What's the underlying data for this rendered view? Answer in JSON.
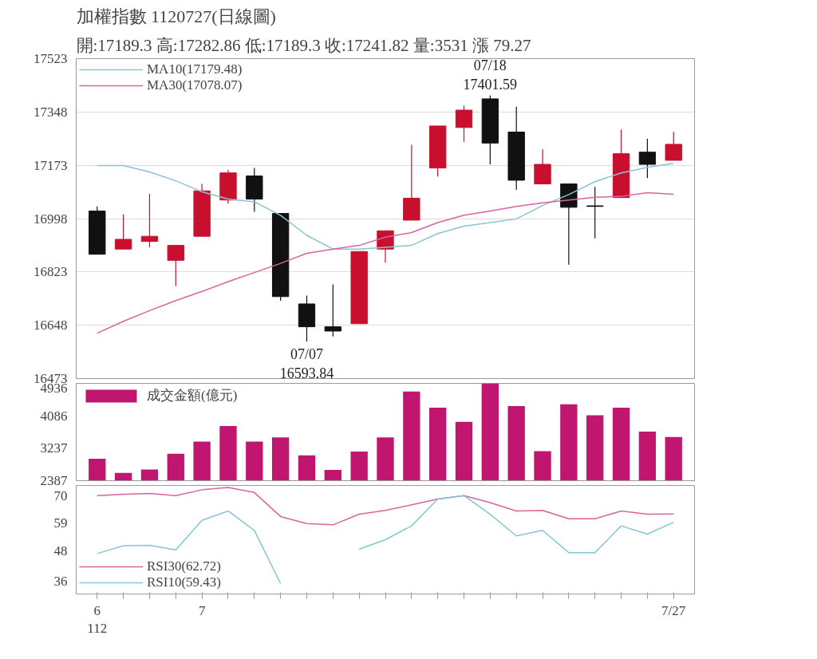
{
  "chart_data": [
    {
      "type": "candlestick",
      "title": "加權指數 1120727(日線圖)",
      "subtitle": "開:17189.3 高:17282.86 低:17189.3 收:17241.82 量:3531 漲 79.27",
      "categories": [
        null,
        null,
        null,
        null,
        null,
        null,
        null,
        null,
        null,
        null,
        null,
        null,
        null,
        null,
        null,
        null,
        null,
        null,
        null,
        null,
        null,
        null,
        null
      ],
      "ohlc": [
        [
          17023,
          17038,
          16881,
          16881
        ],
        [
          16898,
          17012,
          16898,
          16930
        ],
        [
          16923,
          17079,
          16904,
          16940
        ],
        [
          16861,
          16910,
          16777,
          16910
        ],
        [
          16940,
          17112,
          16940,
          17089
        ],
        [
          17059,
          17158,
          17047,
          17148
        ],
        [
          17138,
          17164,
          17020,
          17062
        ],
        [
          17015,
          17015,
          16728,
          16742
        ],
        [
          16718,
          16745,
          16593.84,
          16643
        ],
        [
          16643,
          16782,
          16611,
          16629
        ],
        [
          16653,
          16890,
          16653,
          16890
        ],
        [
          16898,
          16958,
          16854,
          16958
        ],
        [
          16993,
          17240,
          16993,
          17065
        ],
        [
          17164,
          17302,
          17136,
          17302
        ],
        [
          17297,
          17369,
          17250,
          17354
        ],
        [
          17391,
          17401.59,
          17176,
          17246
        ],
        [
          17282,
          17365,
          17092,
          17124
        ],
        [
          17112,
          17226,
          17112,
          17176
        ],
        [
          17112,
          17112,
          16847,
          17035
        ],
        [
          17040,
          17102,
          16933,
          17038
        ],
        [
          17067,
          17290,
          17067,
          17211
        ],
        [
          17216,
          17260,
          17131,
          17176
        ],
        [
          17189.3,
          17282.86,
          17189.3,
          17241.82
        ]
      ],
      "colors": [
        "#111111",
        "#c8102e",
        "#c8102e",
        "#c8102e",
        "#c8102e",
        "#c8102e",
        "#111111",
        "#111111",
        "#111111",
        "#111111",
        "#c8102e",
        "#c8102e",
        "#c8102e",
        "#c8102e",
        "#c8102e",
        "#111111",
        "#111111",
        "#c8102e",
        "#111111",
        "#111111",
        "#c8102e",
        "#111111",
        "#c8102e"
      ],
      "series": [
        {
          "type": "line",
          "name": "MA10(17179.48)",
          "color": "#86c5d3",
          "values": [
            17172,
            17172,
            17151,
            17122,
            17086,
            17062,
            17053,
            17009,
            16943,
            16898,
            16898,
            16904,
            16910,
            16949,
            16973,
            16985,
            16997,
            17041,
            17077,
            17119,
            17148,
            17166,
            17179.48
          ]
        },
        {
          "type": "line",
          "name": "MA30(17078.07)",
          "color": "#d9649e",
          "values": [
            16622,
            16661,
            16696,
            16729,
            16759,
            16791,
            16821,
            16851,
            16884,
            16898,
            16910,
            16937,
            16952,
            16985,
            17009,
            17023,
            17038,
            17050,
            17059,
            17068,
            17071,
            17083,
            17078.07
          ]
        }
      ],
      "ylim": [
        16473,
        17523
      ],
      "yticks": [
        16473,
        16648,
        16823,
        16998,
        17173,
        17348,
        17523
      ],
      "grid": "y",
      "legend": "top left",
      "tick_labels": "y",
      "annotations": [
        {
          "text": "07/07\n16593.84",
          "y": 16593.84
        },
        {
          "text": "07/18\n17401.59",
          "y": 17401.59
        }
      ]
    },
    {
      "type": "bar",
      "categories": [
        null,
        null,
        null,
        null,
        null,
        null,
        null,
        null,
        null,
        null,
        null,
        null,
        null,
        null,
        null,
        null,
        null,
        null,
        null,
        null,
        null,
        null,
        null
      ],
      "series": [
        {
          "name": "成交金額(億元)",
          "color": "#c0166f",
          "values": [
            2960,
            2590,
            2680,
            3090,
            3410,
            3820,
            3410,
            3520,
            3050,
            2670,
            3150,
            3520,
            4720,
            4300,
            3930,
            4930,
            4340,
            3160,
            4390,
            4100,
            4300,
            3670,
            3531
          ]
        }
      ],
      "ylim": [
        2387,
        4936
      ],
      "yticks": [
        2387,
        3237,
        4086,
        4936
      ],
      "legend": "top left",
      "tick_labels": "y"
    },
    {
      "type": "line",
      "categories": [
        "6\n112",
        null,
        null,
        null,
        "7",
        null,
        null,
        null,
        null,
        null,
        null,
        null,
        null,
        null,
        null,
        null,
        null,
        null,
        null,
        null,
        null,
        null,
        "7/27"
      ],
      "series": [
        {
          "name": "RSI30(62.72)",
          "color": "#d9649e",
          "values": [
            70,
            70.5,
            70.8,
            70,
            72.3,
            73.2,
            71.2,
            61.7,
            58.9,
            58.4,
            62.6,
            64.1,
            66.3,
            68.6,
            70,
            67.2,
            63.9,
            64.1,
            60.8,
            60.8,
            63.9,
            62.6,
            62.72
          ]
        },
        {
          "name": "RSI10(59.43)",
          "color": "#86c5d3",
          "values": [
            47,
            50.1,
            50.3,
            48.5,
            60.2,
            63.9,
            56.2,
            35.1,
            null,
            null,
            48.8,
            52.5,
            58,
            68.6,
            70,
            62.6,
            54,
            56.2,
            47.4,
            47.4,
            58,
            54.7,
            59.43
          ]
        }
      ],
      "ylim": [
        31,
        74
      ],
      "yticks": [
        36,
        48,
        59,
        70
      ],
      "legend": "bottom left"
    }
  ]
}
